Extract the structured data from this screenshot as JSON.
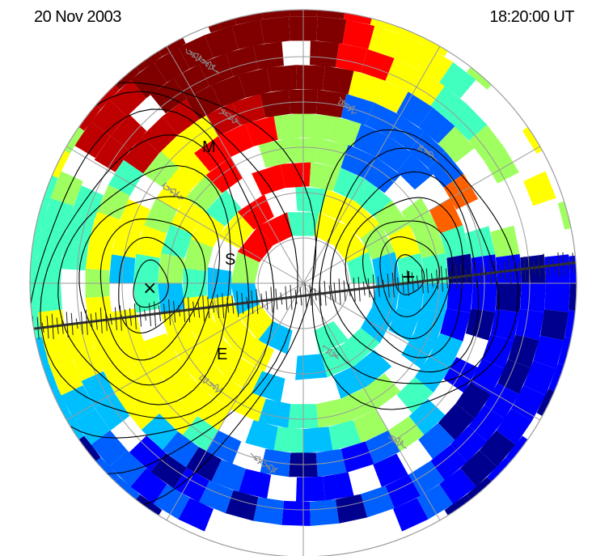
{
  "header": {
    "date": "20 Nov 2003",
    "time": "18:20:00 UT"
  },
  "labels": {
    "m": "M",
    "s": "S",
    "e": "E",
    "minus": "×",
    "plus": "+"
  },
  "colors": {
    "ocean": "#ffffff",
    "grid": "#9a9a9a",
    "coast": "#8a8a8a",
    "contour": "#000000",
    "palette": [
      "#00008f",
      "#0000ff",
      "#0060ff",
      "#00bfff",
      "#40ffbf",
      "#9fff60",
      "#ffff00",
      "#ffbf00",
      "#ff6000",
      "#ff0000",
      "#bf0000",
      "#800000"
    ]
  }
}
